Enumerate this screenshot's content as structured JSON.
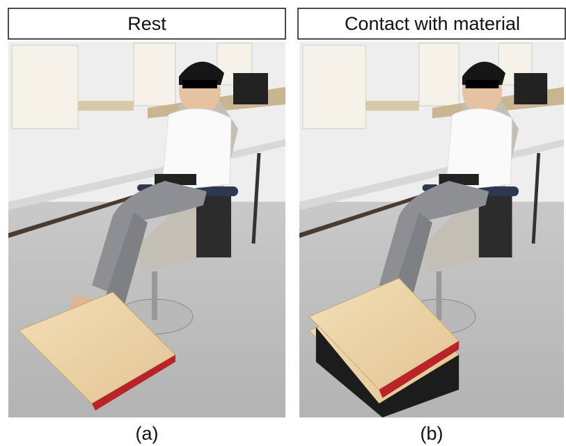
{
  "panels": [
    {
      "title": "Rest",
      "caption": "(a)"
    },
    {
      "title": "Contact with material",
      "caption": "(b)"
    }
  ]
}
